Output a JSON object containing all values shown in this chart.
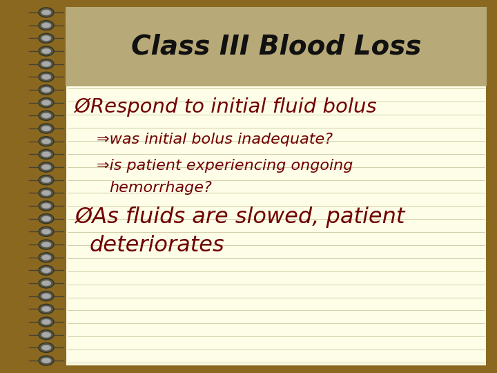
{
  "title": "Class III Blood Loss",
  "title_bg_color": "#b8aa78",
  "notebook_bg": "#fdfde8",
  "outer_bg": "#8B6820",
  "text_color": "#700000",
  "title_text_color": "#111111",
  "line_color": "#d0d0aa",
  "font_family": "DejaVu Sans",
  "title_fontsize": 28,
  "bullet_fontsize": 21,
  "sub_fontsize": 16,
  "bullet1": "ØRespond to initial fluid bolus",
  "sub1": "⇒was initial bolus inadequate?",
  "sub2a": "⇒is patient experiencing ongoing",
  "sub2b": "    hemorrhage?",
  "bullet2a": "ØAs fluids are slowed, patient",
  "bullet2b": "   deteriorates"
}
